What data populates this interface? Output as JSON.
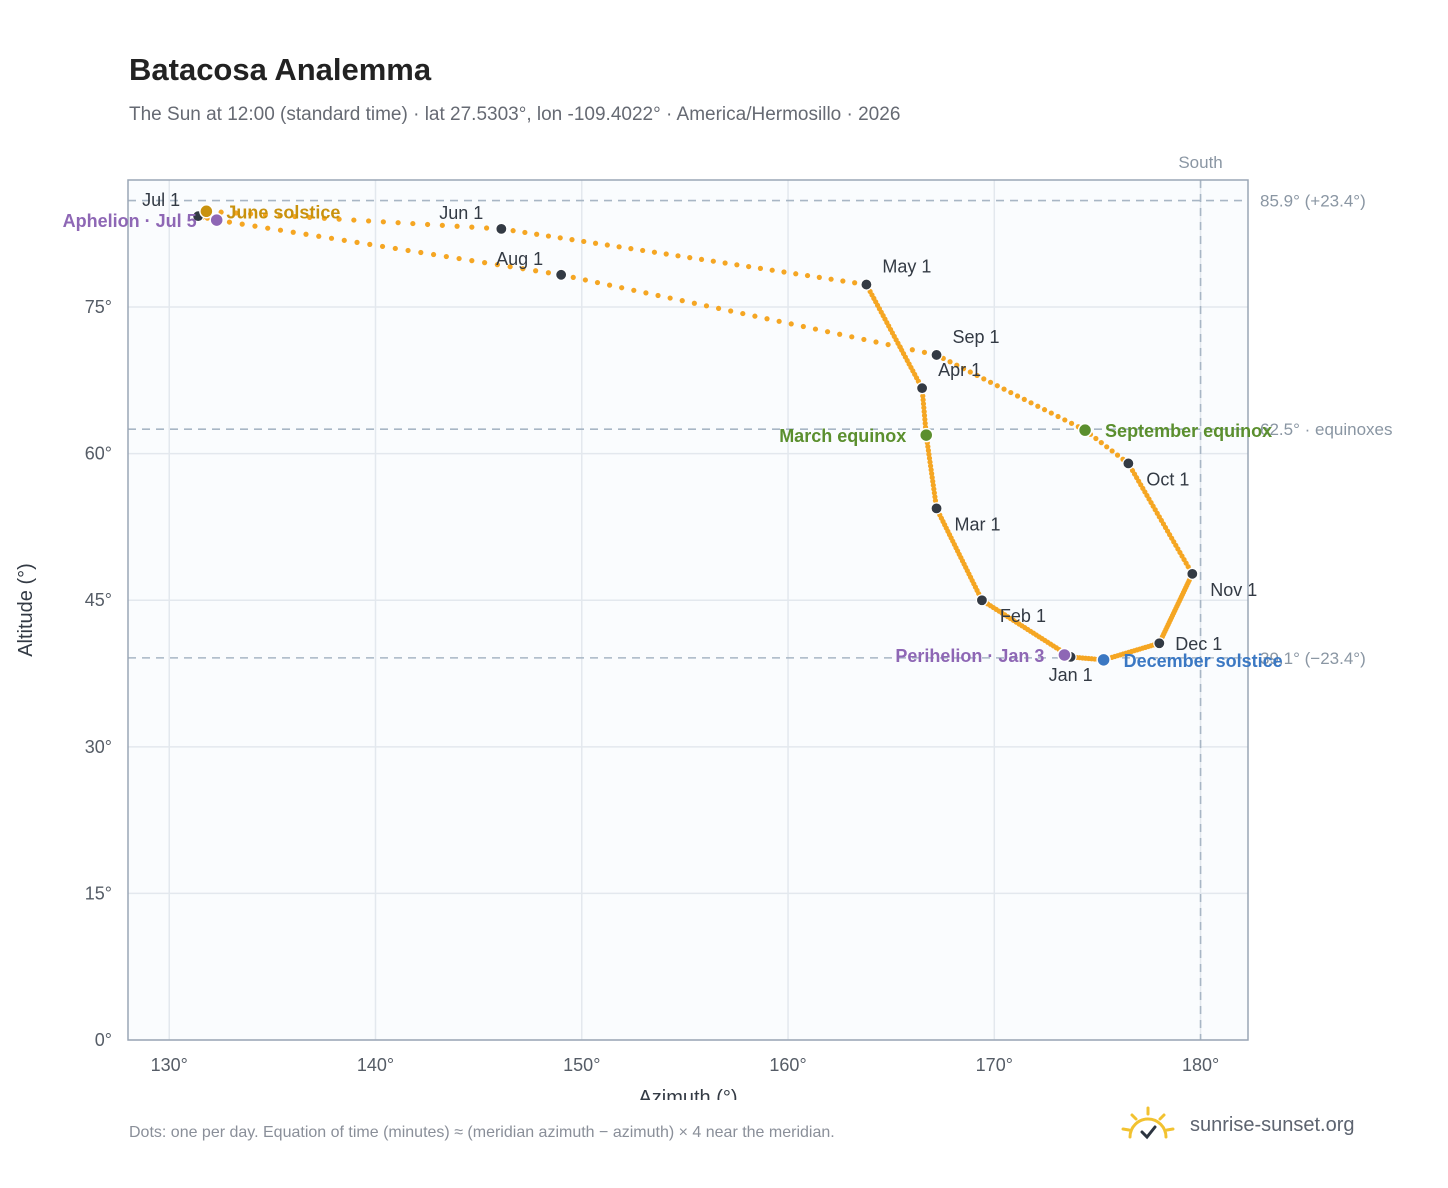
{
  "title": "Batacosa Analemma",
  "subtitle": "The Sun at 12:00 (standard time) · lat 27.5303°, lon -109.4022° · America/Hermosillo · 2026",
  "footnote": "Dots: one per day. Equation of time (minutes) ≈ (meridian azimuth − azimuth) × 4 near the meridian.",
  "brand": {
    "name": "sunrise-sunset.org",
    "logo_icon": "sun-check-icon",
    "logo_color": "#f2c230"
  },
  "chart_data": {
    "type": "scatter",
    "xlabel": "Azimuth (°)",
    "ylabel": "Altitude (°)",
    "xlim": [
      128,
      182.3
    ],
    "ylim": [
      0,
      88
    ],
    "x_ticks": [
      130,
      140,
      150,
      160,
      170,
      180
    ],
    "y_ticks": [
      0,
      15,
      30,
      45,
      60,
      75
    ],
    "x_tick_labels": [
      "130°",
      "140°",
      "150°",
      "160°",
      "170°",
      "180°"
    ],
    "y_tick_labels": [
      "0°",
      "15°",
      "30°",
      "45°",
      "60°",
      "75°"
    ],
    "grid": true,
    "south_azimuth": 180,
    "south_label": "South",
    "reference_lines": [
      {
        "altitude": 85.9,
        "label": "85.9° (+23.4°)"
      },
      {
        "altitude": 62.5,
        "label": "62.5° · equinoxes"
      },
      {
        "altitude": 39.1,
        "label": "39.1° (−23.4°)"
      }
    ],
    "series": [
      {
        "points_per": "day",
        "color": "#f5a623",
        "anchors": [
          {
            "day": 1,
            "az": 173.7,
            "alt": 39.2
          },
          {
            "day": 32,
            "az": 169.4,
            "alt": 45.0
          },
          {
            "day": 60,
            "az": 167.2,
            "alt": 54.4
          },
          {
            "day": 79,
            "az": 166.7,
            "alt": 61.9
          },
          {
            "day": 91,
            "az": 166.5,
            "alt": 66.7
          },
          {
            "day": 121,
            "az": 163.8,
            "alt": 77.3
          },
          {
            "day": 152,
            "az": 146.1,
            "alt": 83.0
          },
          {
            "day": 172,
            "az": 131.8,
            "alt": 84.8
          },
          {
            "day": 182,
            "az": 131.4,
            "alt": 84.3
          },
          {
            "day": 186,
            "az": 132.3,
            "alt": 83.9
          },
          {
            "day": 213,
            "az": 149.0,
            "alt": 78.3
          },
          {
            "day": 244,
            "az": 167.2,
            "alt": 70.1
          },
          {
            "day": 266,
            "az": 174.4,
            "alt": 62.4
          },
          {
            "day": 274,
            "az": 176.5,
            "alt": 59.0
          },
          {
            "day": 305,
            "az": 179.6,
            "alt": 47.7
          },
          {
            "day": 335,
            "az": 178.0,
            "alt": 40.6
          },
          {
            "day": 355,
            "az": 175.3,
            "alt": 38.9
          },
          {
            "day": 366,
            "az": 173.7,
            "alt": 39.2
          }
        ]
      }
    ],
    "month_markers": [
      {
        "label": "Jan 1",
        "az": 173.7,
        "alt": 39.2,
        "label_pos": "below"
      },
      {
        "label": "Feb 1",
        "az": 169.4,
        "alt": 45.0,
        "label_pos": "below-right"
      },
      {
        "label": "Mar 1",
        "az": 167.2,
        "alt": 54.4,
        "label_pos": "below-right"
      },
      {
        "label": "Apr 1",
        "az": 166.5,
        "alt": 66.7,
        "label_pos": "above-right"
      },
      {
        "label": "May 1",
        "az": 163.8,
        "alt": 77.3,
        "label_pos": "above-right"
      },
      {
        "label": "Jun 1",
        "az": 146.1,
        "alt": 83.0,
        "label_pos": "above-left"
      },
      {
        "label": "Jul 1",
        "az": 131.4,
        "alt": 84.3,
        "label_pos": "above-left"
      },
      {
        "label": "Aug 1",
        "az": 149.0,
        "alt": 78.3,
        "label_pos": "above-left"
      },
      {
        "label": "Sep 1",
        "az": 167.2,
        "alt": 70.1,
        "label_pos": "above-right"
      },
      {
        "label": "Oct 1",
        "az": 176.5,
        "alt": 59.0,
        "label_pos": "below-right"
      },
      {
        "label": "Nov 1",
        "az": 179.6,
        "alt": 47.7,
        "label_pos": "below-right"
      },
      {
        "label": "Dec 1",
        "az": 178.0,
        "alt": 40.6,
        "label_pos": "right"
      }
    ],
    "events": [
      {
        "label": "June solstice",
        "az": 131.8,
        "alt": 84.8,
        "color": "#c9920e",
        "label_pos": "right"
      },
      {
        "label": "Aphelion · Jul 5",
        "az": 132.3,
        "alt": 83.9,
        "color": "#8e67b5",
        "label_pos": "left"
      },
      {
        "label": "March equinox",
        "az": 166.7,
        "alt": 61.9,
        "color": "#5b8f2e",
        "label_pos": "left"
      },
      {
        "label": "September equinox",
        "az": 174.4,
        "alt": 62.4,
        "color": "#5b8f2e",
        "label_pos": "right"
      },
      {
        "label": "Perihelion · Jan 3",
        "az": 173.4,
        "alt": 39.4,
        "color": "#8e67b5",
        "label_pos": "left"
      },
      {
        "label": "December solstice",
        "az": 175.3,
        "alt": 38.9,
        "color": "#3b78c3",
        "label_pos": "right"
      }
    ]
  }
}
